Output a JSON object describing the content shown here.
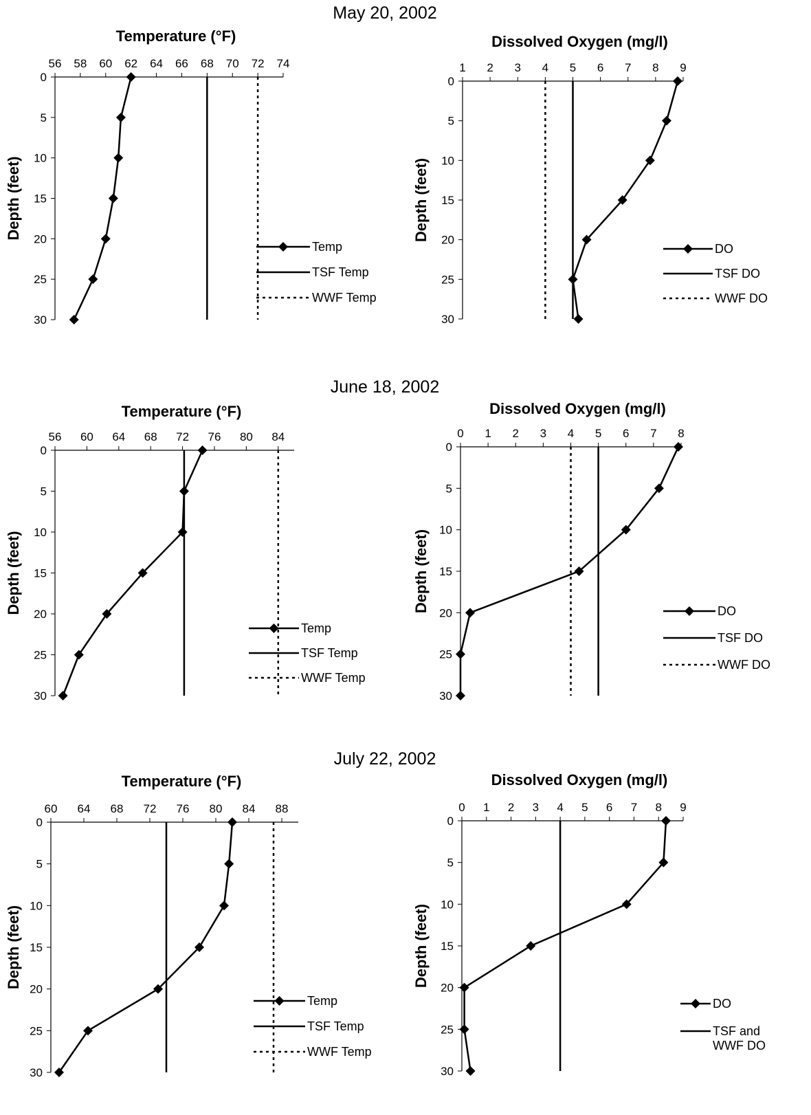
{
  "dates": [
    "May 20, 2002",
    "June 18, 2002",
    "July 22, 2002"
  ],
  "chart_data": [
    {
      "type": "line",
      "date": "May 20, 2002",
      "title": "Temperature (°F)",
      "ylabel": "Depth (feet)",
      "xlim": [
        56,
        74
      ],
      "xticks": [
        56,
        58,
        60,
        62,
        64,
        66,
        68,
        70,
        72,
        74
      ],
      "ylim": [
        0,
        30
      ],
      "yticks": [
        0,
        5,
        10,
        15,
        20,
        25,
        30
      ],
      "y_inverted": true,
      "series": [
        {
          "name": "Temp",
          "style": "line-diamond",
          "x": [
            62,
            61.2,
            61,
            60.6,
            60,
            59,
            57.5
          ],
          "y": [
            0,
            5,
            10,
            15,
            20,
            25,
            30
          ]
        },
        {
          "name": "TSF Temp",
          "style": "solid",
          "x": [
            68,
            68
          ],
          "y": [
            0,
            30
          ]
        },
        {
          "name": "WWF Temp",
          "style": "dotted",
          "x": [
            72,
            72
          ],
          "y": [
            0,
            30
          ]
        }
      ],
      "legend": [
        "Temp",
        "TSF Temp",
        "WWF Temp"
      ],
      "legend_position": "bottom-right"
    },
    {
      "type": "line",
      "date": "May 20, 2002",
      "title": "Dissolved Oxygen (mg/l)",
      "ylabel": "Depth (feet)",
      "xlim": [
        1,
        9
      ],
      "xticks": [
        1,
        2,
        3,
        4,
        5,
        6,
        7,
        8,
        9
      ],
      "ylim": [
        0,
        30
      ],
      "yticks": [
        0,
        5,
        10,
        15,
        20,
        25,
        30
      ],
      "y_inverted": true,
      "series": [
        {
          "name": "DO",
          "style": "line-diamond",
          "x": [
            8.8,
            8.4,
            7.8,
            6.8,
            5.5,
            5,
            5.2
          ],
          "y": [
            0,
            5,
            10,
            15,
            20,
            25,
            30
          ]
        },
        {
          "name": "TSF DO",
          "style": "solid",
          "x": [
            5,
            5
          ],
          "y": [
            0,
            30
          ]
        },
        {
          "name": "WWF DO",
          "style": "dotted",
          "x": [
            4,
            4
          ],
          "y": [
            0,
            30
          ]
        }
      ],
      "legend": [
        "DO",
        "TSF DO",
        "WWF DO"
      ],
      "legend_position": "bottom-right"
    },
    {
      "type": "line",
      "date": "June 18, 2002",
      "title": "Temperature (°F)",
      "ylabel": "Depth (feet)",
      "xlim": [
        56,
        86
      ],
      "xticks": [
        56,
        60,
        64,
        68,
        72,
        76,
        80,
        84
      ],
      "ylim": [
        0,
        30
      ],
      "yticks": [
        0,
        5,
        10,
        15,
        20,
        25,
        30
      ],
      "y_inverted": true,
      "series": [
        {
          "name": "Temp",
          "style": "line-diamond",
          "x": [
            74.5,
            72.2,
            72,
            67,
            62.5,
            59,
            57
          ],
          "y": [
            0,
            5,
            10,
            15,
            20,
            25,
            30
          ]
        },
        {
          "name": "TSF Temp",
          "style": "solid",
          "x": [
            72.2,
            72.2
          ],
          "y": [
            0,
            30
          ]
        },
        {
          "name": "WWF Temp",
          "style": "dotted",
          "x": [
            84,
            84
          ],
          "y": [
            0,
            30
          ]
        }
      ],
      "legend": [
        "Temp",
        "TSF Temp",
        "WWF Temp"
      ],
      "legend_position": "bottom-right"
    },
    {
      "type": "line",
      "date": "June 18, 2002",
      "title": "Dissolved Oxygen (mg/l)",
      "ylabel": "Depth (feet)",
      "xlim": [
        0,
        8
      ],
      "xticks": [
        0,
        1,
        2,
        3,
        4,
        5,
        6,
        7,
        8
      ],
      "ylim": [
        0,
        30
      ],
      "yticks": [
        0,
        5,
        10,
        15,
        20,
        25,
        30
      ],
      "y_inverted": true,
      "series": [
        {
          "name": "DO",
          "style": "line-diamond",
          "x": [
            7.9,
            7.2,
            6,
            4.3,
            0.35,
            0,
            0
          ],
          "y": [
            0,
            5,
            10,
            15,
            20,
            25,
            30
          ]
        },
        {
          "name": "TSF DO",
          "style": "solid",
          "x": [
            5,
            5
          ],
          "y": [
            0,
            30
          ]
        },
        {
          "name": "WWF DO",
          "style": "dotted",
          "x": [
            4,
            4
          ],
          "y": [
            0,
            30
          ]
        }
      ],
      "legend": [
        "DO",
        "TSF DO",
        "WWF DO"
      ],
      "legend_position": "bottom-right"
    },
    {
      "type": "line",
      "date": "July 22, 2002",
      "title": "Temperature (°F)",
      "ylabel": "Depth (feet)",
      "xlim": [
        60,
        90
      ],
      "xticks": [
        60,
        64,
        68,
        72,
        76,
        80,
        84,
        88
      ],
      "ylim": [
        0,
        30
      ],
      "yticks": [
        0,
        5,
        10,
        15,
        20,
        25,
        30
      ],
      "y_inverted": true,
      "series": [
        {
          "name": "Temp",
          "style": "line-diamond",
          "x": [
            82,
            81.6,
            81,
            78,
            73,
            64.5,
            61
          ],
          "y": [
            0,
            5,
            10,
            15,
            20,
            25,
            30
          ]
        },
        {
          "name": "TSF Temp",
          "style": "solid",
          "x": [
            74,
            74
          ],
          "y": [
            0,
            30
          ]
        },
        {
          "name": "WWF Temp",
          "style": "dotted",
          "x": [
            87,
            87
          ],
          "y": [
            0,
            30
          ]
        }
      ],
      "legend": [
        "Temp",
        "TSF Temp",
        "WWF Temp"
      ],
      "legend_position": "bottom-right"
    },
    {
      "type": "line",
      "date": "July 22, 2002",
      "title": "Dissolved Oxygen (mg/l)",
      "ylabel": "Depth (feet)",
      "xlim": [
        0,
        9
      ],
      "xticks": [
        0,
        1,
        2,
        3,
        4,
        5,
        6,
        7,
        8,
        9
      ],
      "ylim": [
        0,
        30
      ],
      "yticks": [
        0,
        5,
        10,
        15,
        20,
        25,
        30
      ],
      "y_inverted": true,
      "series": [
        {
          "name": "DO",
          "style": "line-diamond",
          "x": [
            8.3,
            8.2,
            6.7,
            2.8,
            0.1,
            0.1,
            0.35
          ],
          "y": [
            0,
            5,
            10,
            15,
            20,
            25,
            30
          ]
        },
        {
          "name": "TSF and WWF DO",
          "style": "solid",
          "x": [
            4,
            4
          ],
          "y": [
            0,
            30
          ]
        }
      ],
      "legend": [
        "DO",
        "TSF and WWF DO"
      ],
      "legend_position": "bottom-right"
    }
  ]
}
